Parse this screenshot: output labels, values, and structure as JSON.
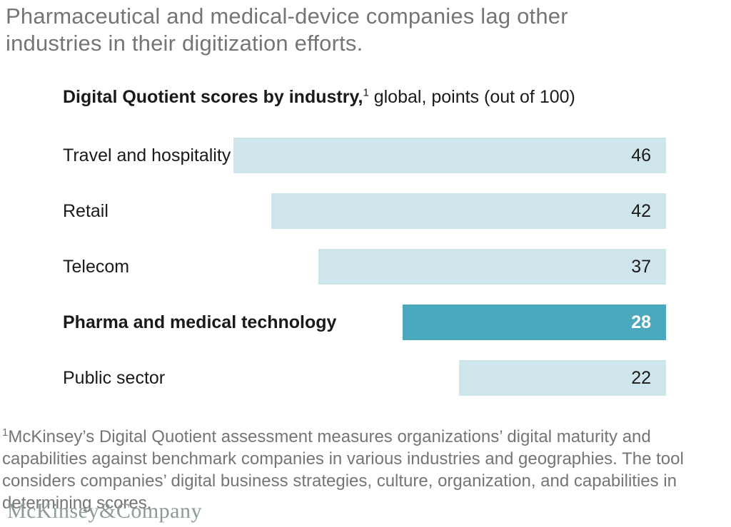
{
  "header": {
    "title": "Pharmaceutical and medical-device companies lag other industries in their digitization efforts."
  },
  "chart_data": {
    "type": "bar",
    "orientation": "horizontal",
    "title_bold": "Digital Quotient scores by industry,",
    "title_footnote_marker": "1",
    "title_units": " global, points (out of 100)",
    "categories": [
      "Travel and hospitality",
      "Retail",
      "Telecom",
      "Pharma and medical technology",
      "Public sector"
    ],
    "values": [
      46,
      42,
      37,
      28,
      22
    ],
    "highlighted_category": "Pharma and medical technology",
    "value_max": 100,
    "bar_alignment": "right",
    "legend": "none",
    "grid": "off",
    "colors": {
      "bar_default": "#cfe5ec",
      "bar_highlight": "#4aa8bc",
      "value_default": "#1a1a1a",
      "value_highlight": "#ffffff"
    }
  },
  "footnote": {
    "marker": "1",
    "text": "McKinsey’s Digital Quotient assessment measures organizations’ digital maturity and capabilities against benchmark companies in various industries and geographies. The tool considers companies’ digital business strategies, culture, organization, and capabilities in determining scores."
  },
  "footer": {
    "logo_text": "McKinsey&Company"
  }
}
